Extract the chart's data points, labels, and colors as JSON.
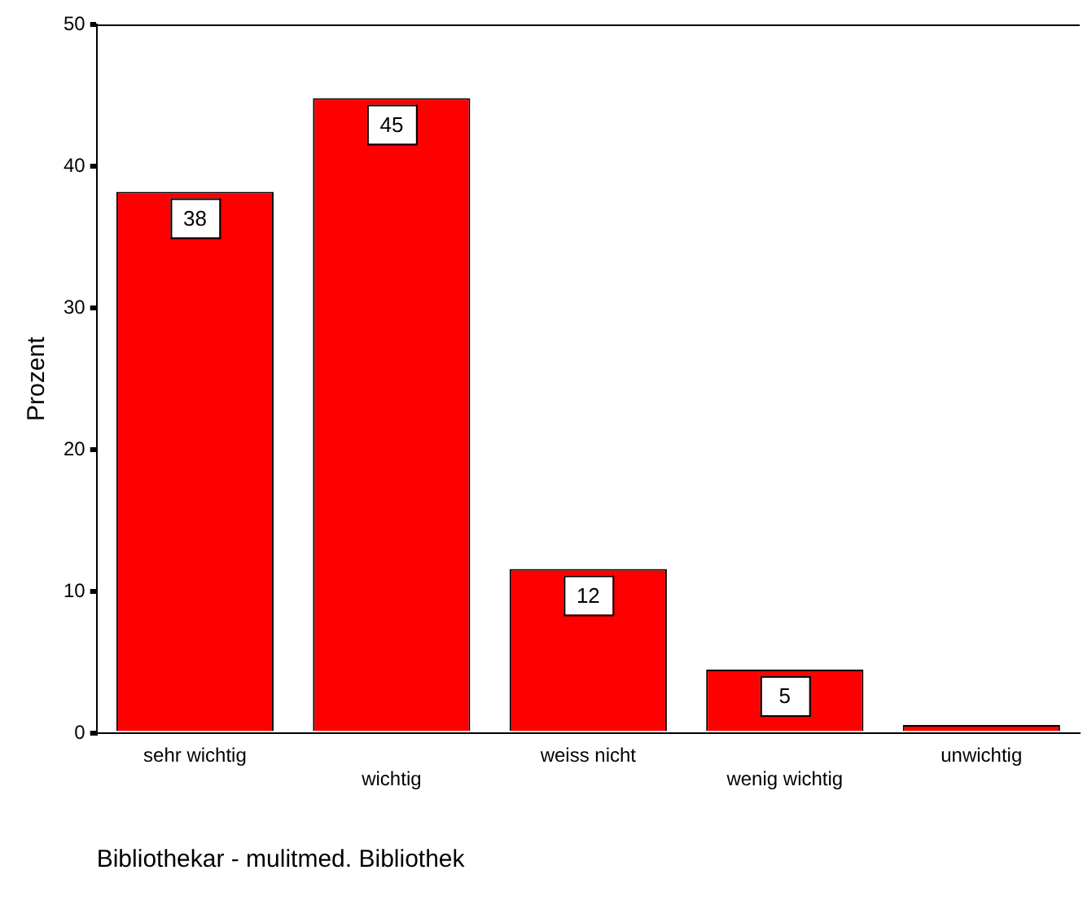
{
  "chart_data": {
    "type": "bar",
    "xlabel": "Bibliothekar - mulitmed. Bibliothek",
    "ylabel": "Prozent",
    "categories": [
      "sehr wichtig",
      "wichtig",
      "weiss nicht",
      "wenig wichtig",
      "unwichtig"
    ],
    "values": [
      38.2,
      44.8,
      11.6,
      4.5,
      0.6
    ],
    "value_labels": [
      "38",
      "45",
      "12",
      "5",
      null
    ],
    "color": "#ff0000",
    "ylim": [
      0,
      50
    ],
    "yticks": [
      0,
      10,
      20,
      30,
      40,
      50
    ],
    "grid": false,
    "legend": false
  }
}
